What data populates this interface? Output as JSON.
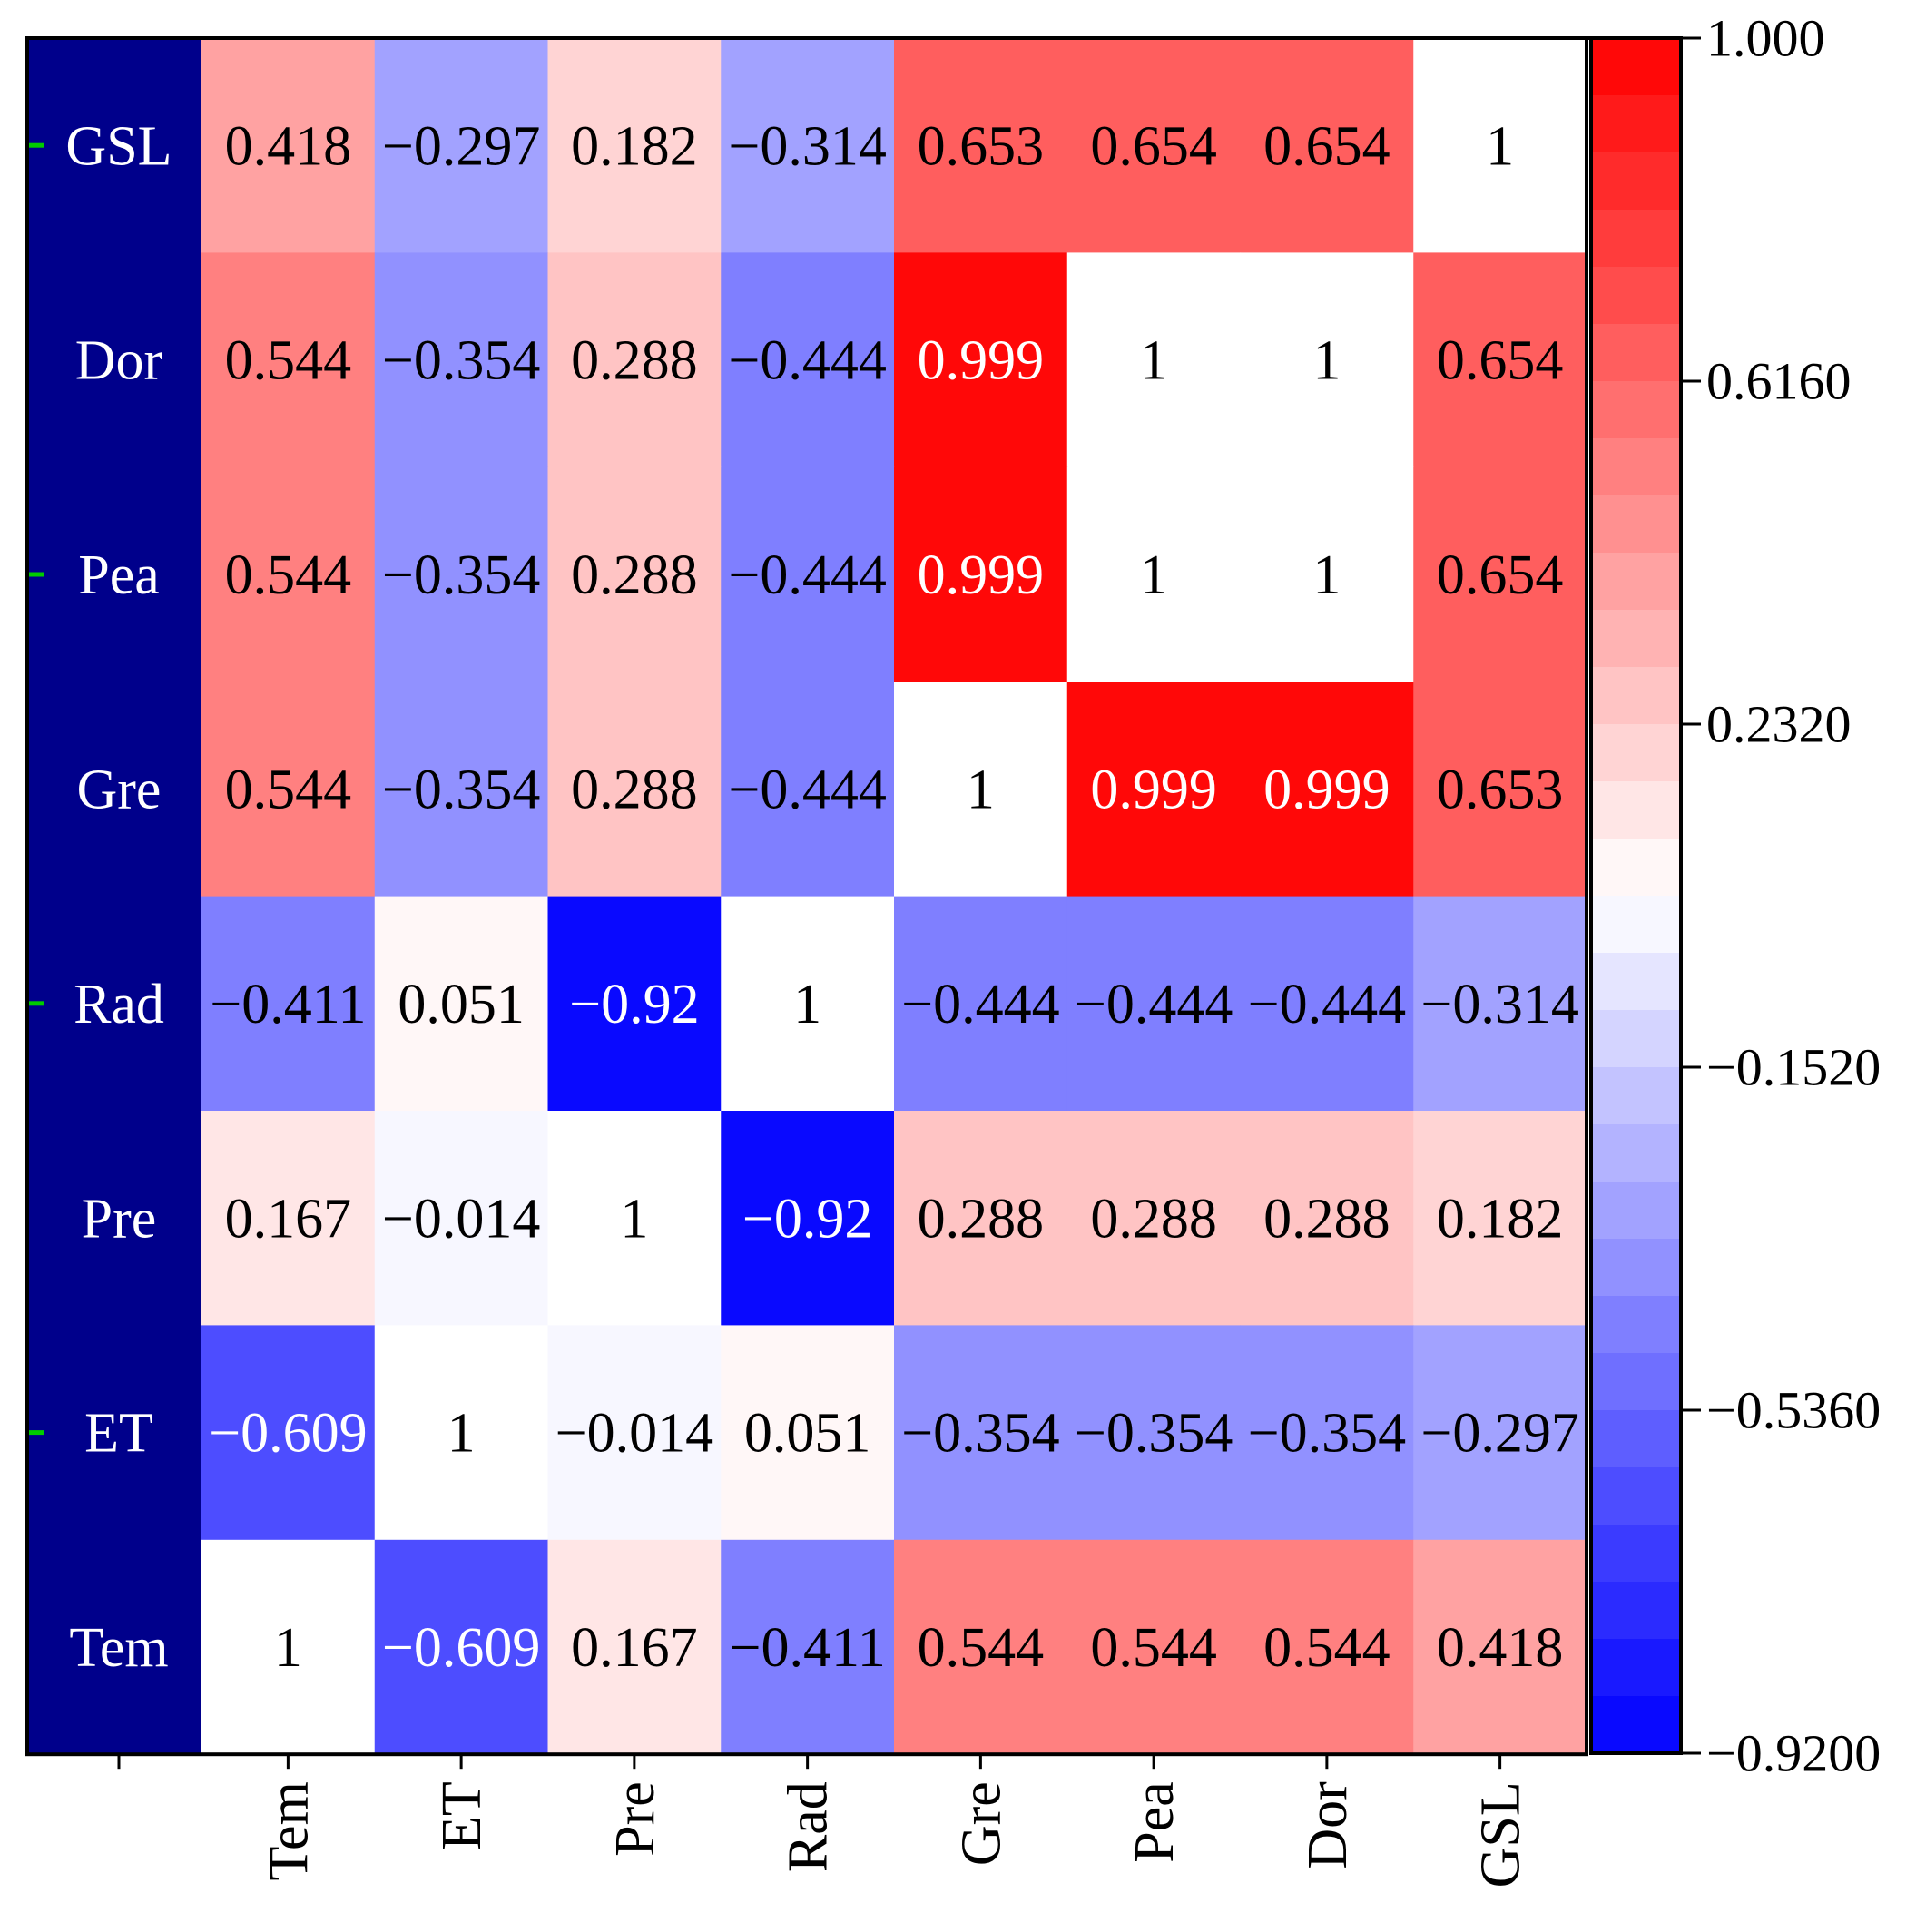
{
  "chart_data": {
    "type": "heatmap",
    "title": "",
    "xlabel": "",
    "ylabel": "",
    "x_categories": [
      "Tem",
      "ET",
      "Pre",
      "Rad",
      "Gre",
      "Pea",
      "Dor",
      "GSL"
    ],
    "y_categories_top_to_bottom": [
      "GSL",
      "Dor",
      "Pea",
      "Gre",
      "Rad",
      "Pre",
      "ET",
      "Tem"
    ],
    "row_label_ticks": [
      "GSL",
      "Pea",
      "Rad",
      "ET"
    ],
    "matrix_rows_top_to_bottom": [
      [
        0.418,
        -0.297,
        0.182,
        -0.314,
        0.653,
        0.654,
        0.654,
        1
      ],
      [
        0.544,
        -0.354,
        0.288,
        -0.444,
        0.999,
        1,
        1,
        0.654
      ],
      [
        0.544,
        -0.354,
        0.288,
        -0.444,
        0.999,
        1,
        1,
        0.654
      ],
      [
        0.544,
        -0.354,
        0.288,
        -0.444,
        1,
        0.999,
        0.999,
        0.653
      ],
      [
        -0.411,
        0.051,
        -0.92,
        1,
        -0.444,
        -0.444,
        -0.444,
        -0.314
      ],
      [
        0.167,
        -0.014,
        1,
        -0.92,
        0.288,
        0.288,
        0.288,
        0.182
      ],
      [
        -0.609,
        1,
        -0.014,
        0.051,
        -0.354,
        -0.354,
        -0.354,
        -0.297
      ],
      [
        1,
        -0.609,
        0.167,
        -0.411,
        0.544,
        0.544,
        0.544,
        0.418
      ]
    ],
    "cell_labels_top_to_bottom": [
      [
        "0.418",
        "−0.297",
        "0.182",
        "−0.314",
        "0.653",
        "0.654",
        "0.654",
        "1"
      ],
      [
        "0.544",
        "−0.354",
        "0.288",
        "−0.444",
        "0.999",
        "1",
        "1",
        "0.654"
      ],
      [
        "0.544",
        "−0.354",
        "0.288",
        "−0.444",
        "0.999",
        "1",
        "1",
        "0.654"
      ],
      [
        "0.544",
        "−0.354",
        "0.288",
        "−0.444",
        "1",
        "0.999",
        "0.999",
        "0.653"
      ],
      [
        "−0.411",
        "0.051",
        "−0.92",
        "1",
        "−0.444",
        "−0.444",
        "−0.444",
        "−0.314"
      ],
      [
        "0.167",
        "−0.014",
        "1",
        "−0.92",
        "0.288",
        "0.288",
        "0.288",
        "0.182"
      ],
      [
        "−0.609",
        "1",
        "−0.014",
        "0.051",
        "−0.354",
        "−0.354",
        "−0.354",
        "−0.297"
      ],
      [
        "1",
        "−0.609",
        "0.167",
        "−0.411",
        "0.544",
        "0.544",
        "0.544",
        "0.418"
      ]
    ],
    "diagonal_color": "#ffffff",
    "colorbar": {
      "min": -0.92,
      "max": 1.0,
      "levels": 30,
      "tick_values": [
        1.0,
        0.616,
        0.232,
        -0.152,
        -0.536,
        -0.92
      ],
      "tick_labels": [
        "1.000",
        "0.6160",
        "0.2320",
        "−0.1520",
        "−0.5360",
        "−0.9200"
      ],
      "low_color": "#0000ff",
      "mid_color": "#ffffff",
      "high_color": "#ff0000",
      "mid_value": 0.04
    },
    "label_band_color": "#00008b",
    "row_label_color": "#ffffff",
    "row_tick_color": "#00cc00",
    "legend": "right"
  }
}
